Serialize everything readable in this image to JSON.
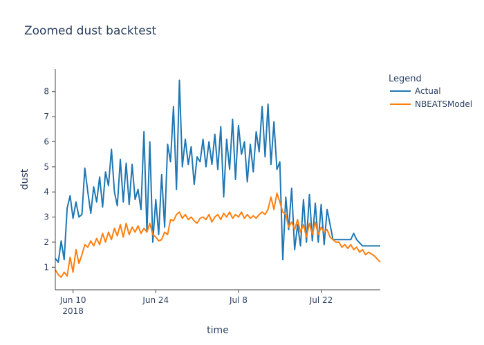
{
  "chart_data": {
    "type": "line",
    "title": "Zoomed dust backtest",
    "xlabel": "time",
    "ylabel": "dust",
    "x_range": [
      "2018-06-07",
      "2018-08-01"
    ],
    "ylim": [
      0.1,
      8.9
    ],
    "x_ticks": [
      {
        "date": "2018-06-10",
        "label": "Jun 10",
        "sublabel": "2018"
      },
      {
        "date": "2018-06-24",
        "label": "Jun 24",
        "sublabel": ""
      },
      {
        "date": "2018-07-08",
        "label": "Jul 8",
        "sublabel": ""
      },
      {
        "date": "2018-07-22",
        "label": "Jul 22",
        "sublabel": ""
      }
    ],
    "y_ticks": [
      1,
      2,
      3,
      4,
      5,
      6,
      7,
      8
    ],
    "legend": {
      "title": "Legend",
      "placement": "top-right outside"
    },
    "grid": false,
    "series": [
      {
        "name": "Actual",
        "color": "#1f77b4",
        "points": [
          [
            "2018-06-07",
            1.35
          ],
          [
            "2018-06-07T12",
            1.2
          ],
          [
            "2018-06-08",
            2.05
          ],
          [
            "2018-06-08T12",
            1.3
          ],
          [
            "2018-06-09",
            3.35
          ],
          [
            "2018-06-09T12",
            3.85
          ],
          [
            "2018-06-10",
            2.95
          ],
          [
            "2018-06-10T12",
            3.6
          ],
          [
            "2018-06-11",
            3.0
          ],
          [
            "2018-06-11T12",
            3.1
          ],
          [
            "2018-06-12",
            4.95
          ],
          [
            "2018-06-12T12",
            4.0
          ],
          [
            "2018-06-13",
            3.15
          ],
          [
            "2018-06-13T12",
            4.2
          ],
          [
            "2018-06-14",
            3.6
          ],
          [
            "2018-06-14T12",
            4.6
          ],
          [
            "2018-06-15",
            3.4
          ],
          [
            "2018-06-15T12",
            4.8
          ],
          [
            "2018-06-16",
            4.25
          ],
          [
            "2018-06-16T12",
            5.7
          ],
          [
            "2018-06-17",
            4.0
          ],
          [
            "2018-06-17T12",
            3.45
          ],
          [
            "2018-06-18",
            5.3
          ],
          [
            "2018-06-18T12",
            3.6
          ],
          [
            "2018-06-19",
            5.15
          ],
          [
            "2018-06-19T12",
            3.5
          ],
          [
            "2018-06-20",
            5.1
          ],
          [
            "2018-06-20T12",
            3.7
          ],
          [
            "2018-06-21",
            4.1
          ],
          [
            "2018-06-21T12",
            3.3
          ],
          [
            "2018-06-22",
            6.4
          ],
          [
            "2018-06-22T12",
            2.4
          ],
          [
            "2018-06-23",
            6.0
          ],
          [
            "2018-06-23T12",
            2.0
          ],
          [
            "2018-06-24",
            3.7
          ],
          [
            "2018-06-24T12",
            2.3
          ],
          [
            "2018-06-25",
            4.7
          ],
          [
            "2018-06-25T12",
            2.6
          ],
          [
            "2018-06-26",
            5.9
          ],
          [
            "2018-06-26T12",
            5.2
          ],
          [
            "2018-06-27",
            7.4
          ],
          [
            "2018-06-27T12",
            4.1
          ],
          [
            "2018-06-28",
            8.45
          ],
          [
            "2018-06-28T12",
            5.0
          ],
          [
            "2018-06-29",
            6.1
          ],
          [
            "2018-06-29T12",
            5.1
          ],
          [
            "2018-06-30",
            5.8
          ],
          [
            "2018-06-30T12",
            4.3
          ],
          [
            "2018-07-01",
            5.4
          ],
          [
            "2018-07-01T12",
            5.2
          ],
          [
            "2018-07-02",
            6.1
          ],
          [
            "2018-07-02T12",
            5.0
          ],
          [
            "2018-07-03",
            6.0
          ],
          [
            "2018-07-03T12",
            5.1
          ],
          [
            "2018-07-04",
            6.3
          ],
          [
            "2018-07-04T12",
            4.9
          ],
          [
            "2018-07-05",
            6.6
          ],
          [
            "2018-07-05T12",
            3.8
          ],
          [
            "2018-07-06",
            6.1
          ],
          [
            "2018-07-06T12",
            4.9
          ],
          [
            "2018-07-07",
            6.9
          ],
          [
            "2018-07-07T12",
            4.5
          ],
          [
            "2018-07-08",
            6.65
          ],
          [
            "2018-07-08T12",
            5.5
          ],
          [
            "2018-07-09",
            6.0
          ],
          [
            "2018-07-09T12",
            4.4
          ],
          [
            "2018-07-10",
            5.9
          ],
          [
            "2018-07-10T12",
            4.8
          ],
          [
            "2018-07-11",
            6.4
          ],
          [
            "2018-07-11T12",
            5.6
          ],
          [
            "2018-07-12",
            7.4
          ],
          [
            "2018-07-12T12",
            5.4
          ],
          [
            "2018-07-13",
            7.5
          ],
          [
            "2018-07-13T12",
            5.1
          ],
          [
            "2018-07-14",
            6.8
          ],
          [
            "2018-07-14T12",
            4.9
          ],
          [
            "2018-07-15",
            5.2
          ],
          [
            "2018-07-15T12",
            1.3
          ],
          [
            "2018-07-16",
            3.8
          ],
          [
            "2018-07-16T12",
            2.5
          ],
          [
            "2018-07-17",
            4.15
          ],
          [
            "2018-07-17T12",
            1.7
          ],
          [
            "2018-07-18",
            2.7
          ],
          [
            "2018-07-18T12",
            1.85
          ],
          [
            "2018-07-19",
            3.7
          ],
          [
            "2018-07-19T12",
            2.0
          ],
          [
            "2018-07-20",
            3.9
          ],
          [
            "2018-07-20T12",
            2.05
          ],
          [
            "2018-07-21",
            3.55
          ],
          [
            "2018-07-21T12",
            2.0
          ],
          [
            "2018-07-22",
            3.5
          ],
          [
            "2018-07-22T12",
            1.9
          ],
          [
            "2018-07-23",
            3.3
          ],
          [
            "2018-07-23T12",
            2.7
          ],
          [
            "2018-07-24",
            2.1
          ],
          [
            "2018-07-25",
            2.1
          ],
          [
            "2018-07-26",
            2.1
          ],
          [
            "2018-07-27",
            2.1
          ],
          [
            "2018-07-27T12",
            2.35
          ],
          [
            "2018-07-28",
            2.1
          ],
          [
            "2018-07-29",
            1.85
          ],
          [
            "2018-08-01",
            1.85
          ]
        ]
      },
      {
        "name": "NBEATSModel",
        "color": "#ff7f0e",
        "points": [
          [
            "2018-06-07",
            0.9
          ],
          [
            "2018-06-07T12",
            0.7
          ],
          [
            "2018-06-08",
            0.6
          ],
          [
            "2018-06-08T12",
            0.8
          ],
          [
            "2018-06-09",
            0.65
          ],
          [
            "2018-06-09T12",
            1.4
          ],
          [
            "2018-06-10",
            0.8
          ],
          [
            "2018-06-10T12",
            1.7
          ],
          [
            "2018-06-11",
            1.15
          ],
          [
            "2018-06-11T12",
            1.5
          ],
          [
            "2018-06-12",
            1.9
          ],
          [
            "2018-06-12T12",
            1.8
          ],
          [
            "2018-06-13",
            2.05
          ],
          [
            "2018-06-13T12",
            1.85
          ],
          [
            "2018-06-14",
            2.15
          ],
          [
            "2018-06-14T12",
            1.9
          ],
          [
            "2018-06-15",
            2.35
          ],
          [
            "2018-06-15T12",
            2.0
          ],
          [
            "2018-06-16",
            2.4
          ],
          [
            "2018-06-16T12",
            2.1
          ],
          [
            "2018-06-17",
            2.55
          ],
          [
            "2018-06-17T12",
            2.25
          ],
          [
            "2018-06-18",
            2.7
          ],
          [
            "2018-06-18T12",
            2.2
          ],
          [
            "2018-06-19",
            2.75
          ],
          [
            "2018-06-19T12",
            2.3
          ],
          [
            "2018-06-20",
            2.6
          ],
          [
            "2018-06-20T12",
            2.4
          ],
          [
            "2018-06-21",
            2.65
          ],
          [
            "2018-06-21T12",
            2.35
          ],
          [
            "2018-06-22",
            2.55
          ],
          [
            "2018-06-22T12",
            2.4
          ],
          [
            "2018-06-23",
            2.75
          ],
          [
            "2018-06-23T12",
            2.3
          ],
          [
            "2018-06-24",
            2.2
          ],
          [
            "2018-06-24T12",
            2.05
          ],
          [
            "2018-06-25",
            2.1
          ],
          [
            "2018-06-25T12",
            2.4
          ],
          [
            "2018-06-26",
            2.3
          ],
          [
            "2018-06-26T12",
            2.9
          ],
          [
            "2018-06-27",
            2.85
          ],
          [
            "2018-06-27T12",
            3.1
          ],
          [
            "2018-06-28",
            3.2
          ],
          [
            "2018-06-28T12",
            2.95
          ],
          [
            "2018-06-29",
            3.1
          ],
          [
            "2018-06-29T12",
            2.9
          ],
          [
            "2018-06-30",
            3.0
          ],
          [
            "2018-06-30T12",
            2.85
          ],
          [
            "2018-07-01",
            2.75
          ],
          [
            "2018-07-01T12",
            2.95
          ],
          [
            "2018-07-02",
            3.0
          ],
          [
            "2018-07-02T12",
            2.9
          ],
          [
            "2018-07-03",
            3.1
          ],
          [
            "2018-07-03T12",
            2.8
          ],
          [
            "2018-07-04",
            3.0
          ],
          [
            "2018-07-04T12",
            3.1
          ],
          [
            "2018-07-05",
            2.9
          ],
          [
            "2018-07-05T12",
            3.15
          ],
          [
            "2018-07-06",
            3.0
          ],
          [
            "2018-07-06T12",
            3.2
          ],
          [
            "2018-07-07",
            2.95
          ],
          [
            "2018-07-07T12",
            3.1
          ],
          [
            "2018-07-08",
            3.0
          ],
          [
            "2018-07-08T12",
            3.2
          ],
          [
            "2018-07-09",
            2.95
          ],
          [
            "2018-07-09T12",
            3.1
          ],
          [
            "2018-07-10",
            2.95
          ],
          [
            "2018-07-10T12",
            3.05
          ],
          [
            "2018-07-11",
            2.95
          ],
          [
            "2018-07-11T12",
            3.1
          ],
          [
            "2018-07-12",
            3.2
          ],
          [
            "2018-07-12T12",
            3.1
          ],
          [
            "2018-07-13",
            3.3
          ],
          [
            "2018-07-13T12",
            3.8
          ],
          [
            "2018-07-14",
            3.3
          ],
          [
            "2018-07-14T12",
            3.95
          ],
          [
            "2018-07-15",
            3.6
          ],
          [
            "2018-07-15T12",
            3.2
          ],
          [
            "2018-07-16",
            3.1
          ],
          [
            "2018-07-16T12",
            2.6
          ],
          [
            "2018-07-17",
            2.8
          ],
          [
            "2018-07-17T12",
            2.5
          ],
          [
            "2018-07-18",
            2.9
          ],
          [
            "2018-07-18T12",
            2.4
          ],
          [
            "2018-07-19",
            2.7
          ],
          [
            "2018-07-19T12",
            2.2
          ],
          [
            "2018-07-20",
            2.75
          ],
          [
            "2018-07-20T12",
            2.3
          ],
          [
            "2018-07-21",
            2.8
          ],
          [
            "2018-07-21T12",
            2.3
          ],
          [
            "2018-07-22",
            2.6
          ],
          [
            "2018-07-22T12",
            2.4
          ],
          [
            "2018-07-23",
            2.5
          ],
          [
            "2018-07-23T12",
            2.2
          ],
          [
            "2018-07-24",
            2.1
          ],
          [
            "2018-07-24T12",
            2.0
          ],
          [
            "2018-07-25",
            2.0
          ],
          [
            "2018-07-25T12",
            1.8
          ],
          [
            "2018-07-26",
            1.9
          ],
          [
            "2018-07-26T12",
            1.75
          ],
          [
            "2018-07-27",
            1.9
          ],
          [
            "2018-07-27T12",
            1.7
          ],
          [
            "2018-07-28",
            1.8
          ],
          [
            "2018-07-28T12",
            1.6
          ],
          [
            "2018-07-29",
            1.7
          ],
          [
            "2018-07-29T12",
            1.5
          ],
          [
            "2018-07-30",
            1.6
          ],
          [
            "2018-07-31",
            1.45
          ],
          [
            "2018-08-01",
            1.2
          ]
        ]
      }
    ]
  }
}
